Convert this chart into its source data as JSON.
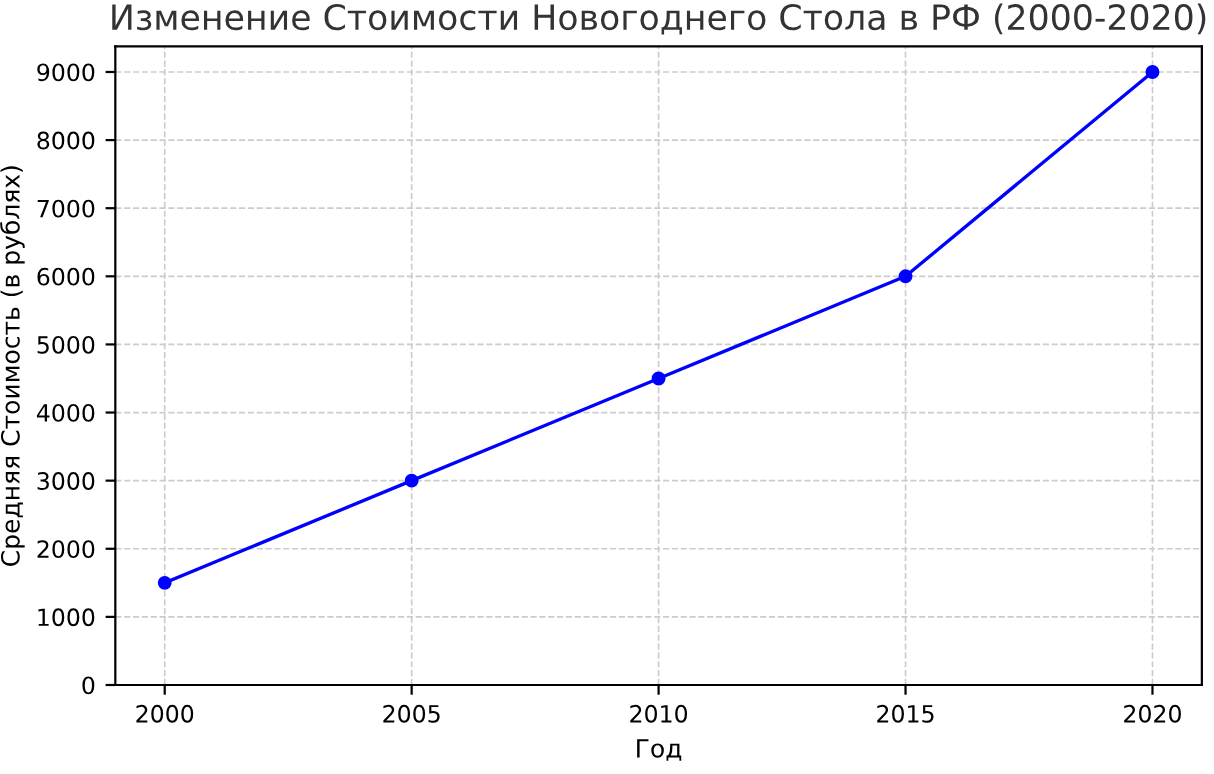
{
  "chart_data": {
    "type": "line",
    "title": "Изменение Стоимости Новогоднего Стола в РФ (2000-2020)",
    "xlabel": "Год",
    "ylabel": "Средняя Стоимость (в рублях)",
    "x": [
      2000,
      2005,
      2010,
      2015,
      2020
    ],
    "series": [
      {
        "color": "#0000ff",
        "values": [
          1500,
          3000,
          4500,
          6000,
          9000
        ]
      }
    ],
    "xlim": [
      1999,
      2021
    ],
    "xticks": [
      2000,
      2005,
      2010,
      2015,
      2020
    ],
    "ylim": [
      0,
      9375
    ],
    "yticks": [
      0,
      1000,
      2000,
      3000,
      4000,
      5000,
      6000,
      7000,
      8000,
      9000
    ],
    "grid": true,
    "marker": "circle",
    "line_style": "solid"
  }
}
